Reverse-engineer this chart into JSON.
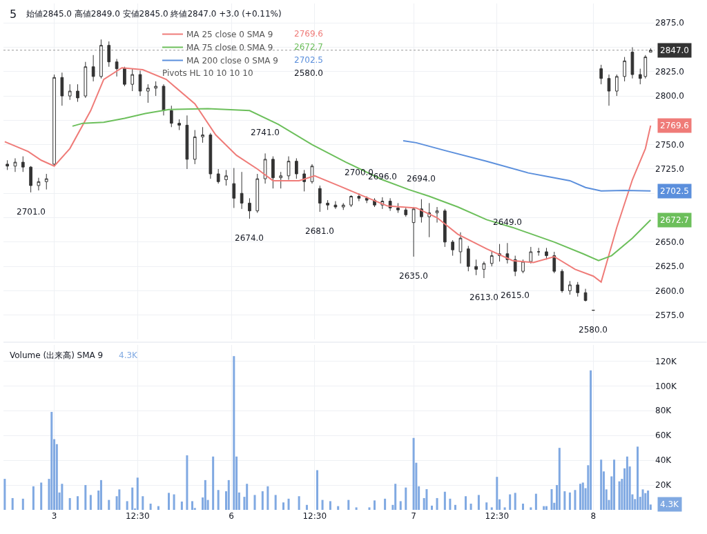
{
  "chart_data": [
    {
      "type": "candlestick",
      "title": "5",
      "subtitle": "始値2845.0 高値2849.0 安値2845.0 終値2847.0 +3.0 (+0.11%)",
      "color": "#333333",
      "categories": [
        null,
        null,
        null,
        null,
        null,
        null,
        null,
        null,
        null,
        null,
        null,
        null,
        null,
        null,
        null,
        null,
        null,
        null,
        null,
        null,
        null,
        null,
        null,
        null,
        null,
        null,
        null,
        null,
        null,
        null,
        null,
        null,
        null,
        null,
        null,
        null,
        null,
        null,
        null,
        null,
        null,
        null,
        null,
        null,
        null,
        null,
        null,
        null,
        null,
        null,
        null,
        null,
        null,
        null,
        null,
        null,
        null,
        null,
        null,
        null,
        null,
        null,
        null,
        null,
        null,
        null,
        null,
        null,
        null,
        null,
        null,
        null,
        null,
        null,
        null,
        null,
        null,
        null,
        null,
        null,
        null,
        null,
        null,
        null,
        null,
        null,
        null,
        null,
        null,
        null,
        null,
        null,
        null,
        null,
        null,
        null,
        null,
        null,
        null,
        null,
        null,
        null,
        null,
        null,
        null,
        null,
        null,
        null,
        null,
        null,
        null,
        null,
        null,
        null,
        null,
        null,
        null,
        null,
        null,
        null,
        null,
        null,
        null,
        null,
        null,
        null,
        null,
        null,
        null,
        null,
        null,
        null,
        null,
        null,
        null,
        null,
        null,
        null,
        null,
        null,
        null,
        null,
        null,
        null,
        null,
        null,
        null,
        null,
        null,
        null,
        null,
        null,
        null,
        null,
        null,
        null,
        null,
        null,
        null,
        null,
        null,
        null,
        null,
        null,
        null,
        null,
        null,
        null,
        null,
        null,
        null,
        null,
        null,
        null,
        null,
        null,
        null,
        null,
        null,
        null,
        null,
        null,
        null,
        null,
        null,
        null,
        null,
        null,
        null,
        null,
        null,
        null,
        null,
        null,
        null,
        null,
        null,
        null,
        null,
        null,
        null,
        null,
        null,
        null,
        null,
        null,
        null,
        null,
        null,
        null,
        null,
        null,
        null,
        null,
        null,
        null,
        null,
        null,
        null,
        null,
        null,
        null,
        null,
        null,
        null,
        null,
        null,
        null,
        null,
        null,
        null,
        null,
        null,
        null,
        null,
        null,
        null,
        null,
        null,
        null,
        null,
        null,
        null,
        null,
        null,
        null,
        null,
        null,
        null,
        null
      ],
      "ohlc": [
        null,
        [
          2730,
          2734,
          2724,
          2728
        ],
        null,
        null,
        [
          2728,
          2736,
          2722,
          2732
        ],
        null,
        null,
        [
          2732,
          2738,
          2722,
          2727
        ],
        null,
        null,
        [
          2727,
          2728,
          2701,
          2708
        ],
        null,
        null,
        [
          2708,
          2716,
          2703,
          2712
        ],
        null,
        null,
        [
          2712,
          2720,
          2704,
          2715
        ],
        null,
        null,
        [
          2730,
          2822,
          2728,
          2819
        ],
        null,
        null,
        [
          2819,
          2824,
          2790,
          2800
        ],
        null,
        null,
        [
          2800,
          2812,
          2796,
          2805
        ],
        null,
        null,
        [
          2805,
          2812,
          2794,
          2798
        ],
        null,
        null,
        [
          2800,
          2835,
          2798,
          2830
        ],
        null,
        null,
        [
          2830,
          2842,
          2815,
          2820
        ],
        null,
        null,
        [
          2820,
          2858,
          2818,
          2852
        ],
        null,
        null,
        [
          2852,
          2856,
          2830,
          2835
        ],
        null,
        null,
        [
          2835,
          2838,
          2820,
          2828
        ],
        null,
        null,
        [
          2828,
          2830,
          2810,
          2812
        ],
        null,
        null,
        [
          2812,
          2828,
          2805,
          2822
        ],
        null,
        null,
        [
          2822,
          2826,
          2800,
          2805
        ],
        null,
        null,
        [
          2805,
          2812,
          2793,
          2808
        ],
        null,
        null,
        [
          2808,
          2815,
          2800,
          2810
        ],
        null,
        null,
        [
          2810,
          2812,
          2780,
          2785
        ],
        null,
        null,
        [
          2785,
          2790,
          2768,
          2772
        ],
        null,
        null,
        [
          2772,
          2776,
          2765,
          2770
        ],
        null,
        null,
        [
          2770,
          2780,
          2725,
          2735
        ],
        null,
        null,
        [
          2735,
          2765,
          2730,
          2758
        ],
        null,
        null,
        [
          2758,
          2768,
          2752,
          2760
        ],
        null,
        null,
        [
          2760,
          2762,
          2715,
          2720
        ],
        null,
        null,
        [
          2720,
          2725,
          2710,
          2712
        ],
        null,
        null,
        [
          2714,
          2724,
          2708,
          2718
        ],
        null,
        null,
        [
          2710,
          2726,
          2685,
          2695
        ],
        null,
        null,
        [
          2700,
          2722,
          2684,
          2690
        ],
        null,
        null,
        [
          2690,
          2695,
          2674,
          2682
        ],
        null,
        null,
        [
          2682,
          2720,
          2680,
          2715
        ],
        null,
        null,
        [
          2715,
          2741,
          2710,
          2735
        ],
        null,
        null,
        [
          2735,
          2738,
          2705,
          2716
        ],
        null,
        null,
        [
          2716,
          2722,
          2705,
          2718
        ],
        null,
        null,
        [
          2718,
          2738,
          2714,
          2733
        ],
        null,
        null,
        [
          2733,
          2736,
          2715,
          2720
        ],
        null,
        null,
        [
          2720,
          2724,
          2702,
          2712
        ],
        null,
        null,
        [
          2712,
          2730,
          2710,
          2728
        ],
        null,
        null,
        [
          2705,
          2708,
          2681,
          2690
        ],
        null,
        null,
        [
          2690,
          2693,
          2683,
          2688
        ],
        null,
        null,
        [
          2688,
          2692,
          2684,
          2686
        ],
        null,
        null,
        [
          2686,
          2690,
          2683,
          2688
        ],
        null,
        null,
        [
          2688,
          2698,
          2686,
          2697
        ],
        null,
        null,
        [
          2697,
          2700,
          2692,
          2695
        ],
        null,
        null,
        [
          2695,
          2697,
          2690,
          2693
        ],
        null,
        null,
        [
          2693,
          2695,
          2686,
          2688
        ],
        null,
        null,
        [
          2688,
          2696,
          2684,
          2692
        ],
        null,
        null,
        [
          2692,
          2695,
          2682,
          2685
        ],
        null,
        null,
        [
          2685,
          2690,
          2680,
          2683
        ],
        null,
        null,
        [
          2683,
          2686,
          2676,
          2678
        ],
        null,
        null,
        [
          2670,
          2686,
          2635,
          2684
        ],
        null,
        null,
        [
          2684,
          2694,
          2670,
          2676
        ],
        null,
        null,
        [
          2676,
          2690,
          2655,
          2680
        ],
        null,
        null,
        [
          2680,
          2686,
          2670,
          2682
        ],
        null,
        null,
        [
          2682,
          2684,
          2645,
          2650
        ],
        null,
        null,
        [
          2650,
          2652,
          2636,
          2642
        ],
        null,
        null,
        [
          2640,
          2660,
          2628,
          2654
        ],
        null,
        null,
        [
          2643,
          2646,
          2620,
          2625
        ],
        null,
        null,
        [
          2625,
          2632,
          2616,
          2622
        ],
        null,
        null,
        [
          2622,
          2630,
          2613,
          2628
        ],
        null,
        null,
        [
          2628,
          2640,
          2625,
          2636
        ],
        null,
        null,
        [
          2636,
          2648,
          2630,
          2638
        ],
        null,
        null,
        [
          2638,
          2649,
          2628,
          2632
        ],
        null,
        null,
        [
          2632,
          2636,
          2615,
          2620
        ],
        null,
        null,
        [
          2620,
          2632,
          2618,
          2630
        ],
        null,
        null,
        [
          2630,
          2645,
          2628,
          2640
        ],
        null,
        null,
        [
          2640,
          2644,
          2636,
          2640
        ],
        null,
        null,
        [
          2640,
          2644,
          2632,
          2636
        ],
        null,
        null,
        [
          2636,
          2640,
          2618,
          2620
        ],
        null,
        null,
        [
          2620,
          2622,
          2598,
          2600
        ],
        null,
        null,
        [
          2600,
          2610,
          2596,
          2606
        ],
        null,
        null,
        [
          2606,
          2609,
          2594,
          2598
        ],
        null,
        null,
        [
          2598,
          2602,
          2589,
          2590
        ],
        null,
        null,
        [
          2580,
          2580,
          2580,
          2580
        ],
        null,
        null,
        [
          2828,
          2832,
          2812,
          2818
        ],
        null,
        null,
        [
          2818,
          2822,
          2790,
          2805
        ],
        null,
        null,
        [
          2805,
          2822,
          2800,
          2820
        ],
        null,
        null,
        [
          2820,
          2840,
          2815,
          2836
        ],
        null,
        null,
        [
          2845,
          2850,
          2818,
          2822
        ],
        null,
        null,
        [
          2822,
          2828,
          2812,
          2818
        ],
        null,
        [
          2820,
          2842,
          2818,
          2840
        ],
        null,
        [
          2845,
          2849,
          2845,
          2847
        ],
        null
      ],
      "series": [
        {
          "type": "line",
          "name": "MA 25 close 0 SMA 9",
          "color": "#ef7b78",
          "values": [
            2753,
            null,
            null,
            null,
            null,
            null,
            null,
            null,
            null,
            2743,
            null,
            null,
            null,
            null,
            2734,
            null,
            null,
            null,
            null,
            2728,
            null,
            null,
            null,
            null,
            null,
            2746,
            null,
            null,
            null,
            null,
            null,
            null,
            null,
            2785,
            null,
            null,
            null,
            null,
            2817,
            null,
            null,
            null,
            null,
            null,
            null,
            2829,
            null,
            null,
            null,
            null,
            null,
            null,
            null,
            2827,
            null,
            null,
            null,
            null,
            null,
            null,
            null,
            null,
            2817,
            null,
            null,
            null,
            null,
            null,
            null,
            null,
            null,
            null,
            null,
            2792,
            null,
            null,
            null,
            null,
            null,
            null,
            null,
            2760,
            null,
            null,
            null,
            null,
            null,
            null,
            null,
            2739,
            null,
            null,
            null,
            null,
            null,
            null,
            null,
            2725,
            null,
            null,
            null,
            null,
            null,
            2713,
            null,
            null,
            null,
            null,
            null,
            null,
            null,
            null,
            null,
            2713,
            null,
            null,
            null,
            null,
            null,
            2718,
            null,
            null,
            null,
            null,
            null,
            null,
            null,
            null,
            null,
            2707,
            null,
            null,
            null,
            null,
            null,
            null,
            null,
            2698,
            null,
            null,
            null,
            null,
            null,
            null,
            null,
            null,
            null,
            2687,
            null,
            null,
            null,
            null,
            null,
            null,
            null,
            null,
            null,
            null,
            2685,
            null,
            null,
            null,
            null,
            null,
            null,
            null,
            2675,
            null,
            null,
            null,
            null,
            null,
            null,
            null,
            2658,
            null,
            null,
            null,
            null,
            null,
            null,
            null,
            null,
            null,
            null,
            2643,
            null,
            null,
            null,
            null,
            null,
            null,
            null,
            null,
            null,
            2631,
            null,
            null,
            null,
            null,
            null,
            null,
            null,
            2629,
            null,
            null,
            null,
            null,
            null,
            null,
            null,
            2635,
            null,
            null,
            null,
            null,
            null,
            null,
            null,
            2622,
            null,
            null,
            null,
            null,
            null,
            null,
            2615,
            null,
            null,
            2609,
            null,
            null,
            null,
            null,
            null,
            2665,
            null,
            null,
            null,
            null,
            null,
            2714,
            null,
            null,
            null,
            null,
            2746,
            null,
            2769.6,
            null
          ]
        },
        {
          "type": "line",
          "name": "MA 75 close 0 SMA 9",
          "color": "#6cbf5b",
          "values": [
            null,
            null,
            null,
            null,
            null,
            null,
            null,
            null,
            null,
            null,
            null,
            null,
            null,
            null,
            null,
            null,
            null,
            null,
            null,
            null,
            null,
            null,
            null,
            null,
            null,
            null,
            2769,
            null,
            null,
            null,
            2772,
            null,
            null,
            null,
            null,
            null,
            null,
            null,
            2773,
            null,
            null,
            null,
            null,
            null,
            null,
            null,
            2777,
            null,
            null,
            null,
            null,
            null,
            null,
            null,
            2782,
            null,
            null,
            null,
            null,
            null,
            null,
            null,
            null,
            2786,
            null,
            null,
            null,
            null,
            null,
            null,
            null,
            null,
            null,
            null,
            null,
            null,
            null,
            null,
            2787,
            null,
            null,
            null,
            null,
            null,
            null,
            null,
            null,
            null,
            null,
            null,
            null,
            null,
            null,
            null,
            2785,
            null,
            null,
            null,
            null,
            null,
            null,
            null,
            null,
            null,
            null,
            2771,
            null,
            null,
            null,
            null,
            null,
            null,
            null,
            null,
            null,
            null,
            null,
            null,
            2750,
            null,
            null,
            null,
            null,
            null,
            null,
            null,
            null,
            null,
            null,
            null,
            null,
            2732,
            null,
            null,
            null,
            null,
            null,
            null,
            null,
            null,
            null,
            null,
            null,
            null,
            null,
            2714,
            null,
            null,
            null,
            null,
            null,
            null,
            null,
            null,
            null,
            2704,
            null,
            null,
            null,
            null,
            null,
            null,
            null,
            2697,
            null,
            null,
            null,
            null,
            null,
            null,
            null,
            null,
            null,
            null,
            2686,
            null,
            null,
            null,
            null,
            null,
            null,
            null,
            null,
            null,
            null,
            2673,
            null,
            null,
            null,
            null,
            null,
            null,
            null,
            null,
            null,
            2665,
            null,
            null,
            null,
            null,
            null,
            null,
            null,
            null,
            null,
            null,
            null,
            null,
            null,
            null,
            null,
            2650,
            null,
            null,
            null,
            null,
            null,
            null,
            null,
            null,
            null,
            null,
            2638,
            null,
            null,
            null,
            null,
            null,
            2631,
            null,
            null,
            null,
            null,
            2636,
            null,
            null,
            null,
            null,
            null,
            null,
            null,
            2654,
            null,
            null,
            null,
            null,
            null,
            null,
            2672.7,
            null
          ]
        },
        {
          "type": "line",
          "name": "MA 200 close 0 SMA 9",
          "color": "#5b8fdc",
          "values": [
            null,
            null,
            null,
            null,
            null,
            null,
            null,
            null,
            null,
            null,
            null,
            null,
            null,
            null,
            null,
            null,
            null,
            null,
            null,
            null,
            null,
            null,
            null,
            null,
            null,
            null,
            null,
            null,
            null,
            null,
            null,
            null,
            null,
            null,
            null,
            null,
            null,
            null,
            null,
            null,
            null,
            null,
            null,
            null,
            null,
            null,
            null,
            null,
            null,
            null,
            null,
            null,
            null,
            null,
            null,
            null,
            null,
            null,
            null,
            null,
            null,
            null,
            null,
            null,
            null,
            null,
            null,
            null,
            null,
            null,
            null,
            null,
            null,
            null,
            null,
            null,
            null,
            null,
            null,
            null,
            null,
            null,
            null,
            null,
            null,
            null,
            null,
            null,
            null,
            null,
            null,
            null,
            null,
            null,
            null,
            null,
            null,
            null,
            null,
            null,
            null,
            null,
            null,
            null,
            null,
            null,
            null,
            null,
            null,
            null,
            null,
            null,
            null,
            null,
            null,
            null,
            null,
            null,
            null,
            null,
            null,
            null,
            null,
            null,
            null,
            null,
            null,
            null,
            null,
            null,
            null,
            null,
            null,
            null,
            null,
            null,
            null,
            null,
            null,
            null,
            null,
            null,
            null,
            null,
            null,
            null,
            null,
            null,
            null,
            null,
            null,
            null,
            null,
            2754,
            null,
            null,
            null,
            null,
            2752,
            null,
            null,
            null,
            null,
            null,
            null,
            null,
            null,
            null,
            null,
            2744,
            null,
            null,
            null,
            null,
            null,
            null,
            null,
            null,
            null,
            null,
            null,
            null,
            null,
            null,
            null,
            2733,
            null,
            null,
            null,
            null,
            null,
            null,
            null,
            null,
            null,
            null,
            null,
            null,
            null,
            null,
            null,
            2721,
            null,
            null,
            null,
            null,
            null,
            null,
            null,
            null,
            null,
            null,
            null,
            null,
            null,
            null,
            null,
            2713,
            null,
            null,
            null,
            null,
            null,
            2706,
            null,
            null,
            null,
            null,
            null,
            2702.5,
            null,
            null,
            null,
            null,
            null,
            null,
            null,
            null,
            2703,
            null,
            null,
            null,
            null,
            null,
            null,
            null,
            null,
            null,
            2702.5,
            null
          ]
        }
      ],
      "ylim": [
        2550,
        2895
      ],
      "yticks": [
        {
          "value": 2575,
          "label": "2575.0"
        },
        {
          "value": 2600,
          "label": "2600.0"
        },
        {
          "value": 2625,
          "label": "2625.0"
        },
        {
          "value": 2650,
          "label": "2650.0"
        },
        {
          "value": 2675,
          "label": null
        },
        {
          "value": 2700,
          "label": null
        },
        {
          "value": 2725,
          "label": "2725.0"
        },
        {
          "value": 2750,
          "label": "2750.0"
        },
        {
          "value": 2775,
          "label": null
        },
        {
          "value": 2800,
          "label": "2800.0"
        },
        {
          "value": 2825,
          "label": "2825.0"
        },
        {
          "value": 2850,
          "label": null
        },
        {
          "value": 2875,
          "label": "2875.0"
        }
      ],
      "tick_labels": "y",
      "grid": true,
      "legend": "top left",
      "ref_lines": [
        {
          "axis": "y",
          "value": 2847,
          "label": "2847.0",
          "color": "#333333",
          "line_style": "dotted"
        }
      ],
      "annotations": [
        "2769.6",
        "2672.7",
        "2702.5",
        "Pivots HL 10 10 10 10",
        "2580.0",
        "2769.6",
        "2672.7",
        "2702.5",
        {
          "text": "2701.0",
          "y": 2701
        },
        {
          "text": "2741.0",
          "y": 2741
        },
        {
          "text": "2674.0",
          "y": 2674
        },
        {
          "text": "2681.0",
          "y": 2681
        },
        {
          "text": "2700.0",
          "y": 2700
        },
        {
          "text": "2696.0",
          "y": 2696
        },
        {
          "text": "2694.0",
          "y": 2694
        },
        {
          "text": "2635.0",
          "y": 2635
        },
        {
          "text": "2649.0",
          "y": 2649
        },
        {
          "text": "2613.0",
          "y": 2613
        },
        {
          "text": "2615.0",
          "y": 2615
        },
        {
          "text": "2580.0",
          "y": 2580
        }
      ]
    },
    {
      "type": "bar",
      "title": "Volume (出来高) SMA 9",
      "color": "#80a9e2",
      "categories": [
        null,
        null,
        null,
        null,
        null,
        null,
        null,
        null,
        null,
        null,
        null,
        null,
        null,
        null,
        null,
        null,
        null,
        null,
        null,
        "3",
        null,
        null,
        null,
        null,
        null,
        null,
        null,
        null,
        null,
        null,
        null,
        null,
        null,
        null,
        null,
        null,
        null,
        null,
        null,
        null,
        null,
        null,
        null,
        null,
        null,
        null,
        null,
        null,
        null,
        null,
        null,
        "12:30",
        null,
        null,
        null,
        null,
        null,
        null,
        null,
        null,
        null,
        null,
        null,
        null,
        null,
        null,
        null,
        null,
        null,
        null,
        null,
        null,
        null,
        null,
        null,
        null,
        null,
        null,
        null,
        null,
        null,
        null,
        null,
        null,
        null,
        null,
        null,
        "6",
        null,
        null,
        null,
        null,
        null,
        null,
        null,
        null,
        null,
        null,
        null,
        null,
        null,
        null,
        null,
        null,
        null,
        null,
        null,
        null,
        null,
        null,
        null,
        null,
        null,
        null,
        null,
        null,
        null,
        null,
        null,
        "12:30",
        null,
        null,
        null,
        null,
        null,
        null,
        null,
        null,
        null,
        null,
        null,
        null,
        null,
        null,
        null,
        null,
        null,
        null,
        null,
        null,
        null,
        null,
        null,
        null,
        null,
        null,
        null,
        null,
        null,
        null,
        null,
        null,
        null,
        null,
        null,
        null,
        null,
        "7",
        null,
        null,
        null,
        null,
        null,
        null,
        null,
        null,
        null,
        null,
        null,
        null,
        null,
        null,
        null,
        null,
        null,
        null,
        null,
        null,
        null,
        null,
        null,
        null,
        null,
        null,
        null,
        null,
        null,
        null,
        null,
        "12:30",
        null,
        null,
        null,
        null,
        null,
        null,
        null,
        null,
        null,
        null,
        null,
        null,
        null,
        null,
        null,
        null,
        null,
        null,
        null,
        null,
        null,
        null,
        null,
        null,
        null,
        null,
        null,
        null,
        null,
        null,
        null,
        null,
        null,
        null,
        null,
        null,
        "8",
        null,
        null,
        null,
        null,
        null,
        null,
        null,
        null,
        null,
        null,
        null,
        null,
        null,
        null,
        null,
        null,
        null,
        null,
        null,
        null,
        null,
        null,
        null
      ],
      "values": [
        25000,
        null,
        null,
        9500,
        null,
        null,
        null,
        9000,
        null,
        null,
        null,
        19000,
        null,
        null,
        22000,
        null,
        null,
        25000,
        79000,
        57000,
        53000,
        14000,
        21000,
        null,
        null,
        9500,
        null,
        null,
        11000,
        null,
        null,
        20000,
        null,
        12000,
        null,
        null,
        15600,
        24000,
        null,
        null,
        8000,
        null,
        null,
        11000,
        16500,
        null,
        null,
        7000,
        null,
        18000,
        600,
        26000,
        null,
        11000,
        null,
        null,
        5000,
        null,
        null,
        3000,
        null,
        null,
        null,
        13700,
        null,
        12500,
        null,
        null,
        6700,
        null,
        44000,
        null,
        7000,
        1500,
        null,
        null,
        10000,
        24000,
        8000,
        null,
        43000,
        null,
        16000,
        null,
        null,
        15000,
        24000,
        null,
        124000,
        43000,
        14000,
        null,
        10500,
        21000,
        null,
        null,
        12000,
        null,
        null,
        15000,
        null,
        19000,
        null,
        null,
        12000,
        null,
        null,
        6000,
        null,
        9000,
        null,
        null,
        null,
        11000,
        null,
        null,
        4000,
        null,
        null,
        null,
        32000,
        null,
        8000,
        null,
        null,
        7000,
        null,
        null,
        3000,
        null,
        null,
        null,
        8000,
        null,
        null,
        2000,
        null,
        null,
        null,
        null,
        2000,
        null,
        7600,
        null,
        null,
        null,
        9000,
        null,
        null,
        4000,
        21000,
        null,
        7000,
        null,
        18000,
        null,
        null,
        58000,
        38000,
        19000,
        null,
        9500,
        16700,
        null,
        3400,
        null,
        9500,
        null,
        null,
        14600,
        null,
        9000,
        null,
        4000,
        null,
        null,
        null,
        11000,
        null,
        5000,
        null,
        null,
        12000,
        null,
        null,
        6000,
        null,
        2000,
        null,
        26600,
        8500,
        null,
        2000,
        null,
        12500,
        null,
        13700,
        null,
        null,
        5000,
        null,
        null,
        2000,
        null,
        13000,
        null,
        null,
        3000,
        3000,
        null,
        16700,
        5700,
        20000,
        50000,
        null,
        15000,
        null,
        14000,
        null,
        16000,
        null,
        21000,
        22000,
        17500,
        36000,
        112500,
        null,
        null,
        null,
        40500,
        31000,
        16500,
        8000,
        27000,
        40500,
        null,
        23000,
        25000,
        33500,
        43000,
        35000,
        12500,
        8700,
        51000,
        10500,
        16500,
        13500,
        15600,
        4300,
        null
      ],
      "ylim": [
        0,
        133000
      ],
      "yticks": [
        {
          "value": 20000,
          "label": "20K"
        },
        {
          "value": 40000,
          "label": "40K"
        },
        {
          "value": 60000,
          "label": "60K"
        },
        {
          "value": 80000,
          "label": "80K"
        },
        {
          "value": 100000,
          "label": "100K"
        },
        {
          "value": 120000,
          "label": "120K"
        }
      ],
      "grid": true,
      "annotations": [
        "4.3K",
        "4.3K"
      ]
    }
  ]
}
